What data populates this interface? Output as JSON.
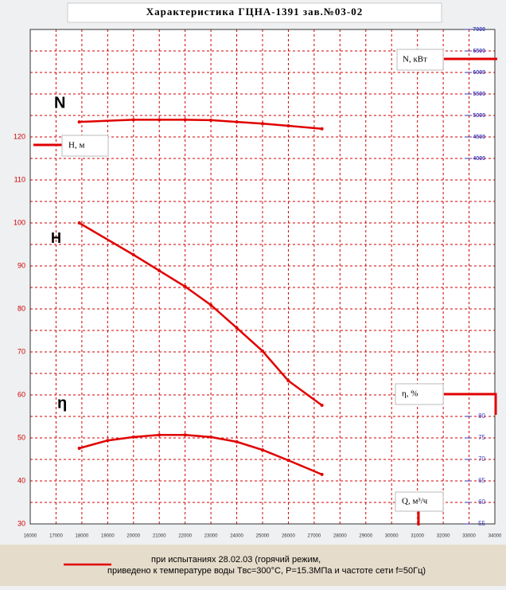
{
  "chart_data": {
    "type": "line",
    "title": "Характеристика ГЦНА-1391 зав.№03-02",
    "xlabel": "Q, м³/ч",
    "ylabel": "H, м",
    "y2label": "N, кВт",
    "y3label": "η, %",
    "legend": [
      "при испытаниях 28.02.03 (горячий режим,",
      "приведено к температуре воды Tвс=300°С, P=15.3МПа и частоте сети f=50Гц)"
    ],
    "xlim": [
      16000,
      34000
    ],
    "xticks": [
      16000,
      17000,
      18000,
      19000,
      20000,
      21000,
      22000,
      23000,
      24000,
      25000,
      26000,
      27000,
      28000,
      29000,
      30000,
      31000,
      32000,
      33000,
      34000
    ],
    "ylim": [
      30,
      145
    ],
    "yticks": [
      30,
      40,
      50,
      60,
      70,
      80,
      90,
      100,
      110,
      120
    ],
    "ygrid": [
      30,
      35,
      40,
      45,
      50,
      55,
      60,
      65,
      70,
      75,
      80,
      85,
      90,
      95,
      100,
      105,
      110,
      115,
      120,
      125,
      130,
      135,
      140,
      145
    ],
    "y2lim": [
      -4500,
      7000
    ],
    "y2ticks": [
      4000,
      4500,
      5000,
      5500,
      6000,
      6500,
      7000
    ],
    "y3lim": [
      55,
      170
    ],
    "y3ticks": [
      55,
      60,
      65,
      70,
      75,
      80
    ],
    "grid": true,
    "series": [
      {
        "name": "N",
        "color": "#e00000",
        "axis": "y2",
        "x": [
          17900,
          20000,
          21000,
          22000,
          23000,
          24000,
          25000,
          26000,
          27300
        ],
        "values": [
          4850,
          4900,
          4900,
          4900,
          4890,
          4850,
          4810,
          4760,
          4690
        ]
      },
      {
        "name": "H",
        "color": "#e00000",
        "axis": "y",
        "x": [
          17900,
          20000,
          21000,
          22000,
          23000,
          24000,
          25000,
          26000,
          27300
        ],
        "values": [
          100,
          92.6,
          88.9,
          85.2,
          80.9,
          75.6,
          70.2,
          63.3,
          57.6
        ]
      },
      {
        "name": "η",
        "color": "#e00000",
        "axis": "y3",
        "x": [
          17900,
          19000,
          20000,
          21000,
          22000,
          23000,
          24000,
          25000,
          26000,
          27300
        ],
        "values": [
          72.6,
          74.4,
          75.2,
          75.7,
          75.7,
          75.2,
          74.1,
          72.2,
          69.8,
          66.5
        ]
      }
    ]
  }
}
